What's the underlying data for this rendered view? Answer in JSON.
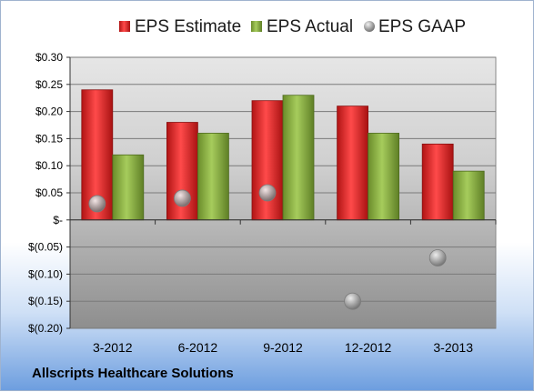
{
  "company": "Allscripts Healthcare Solutions",
  "colors": {
    "estimate": "#cc1f1f",
    "actual": "#7ea33a",
    "gaap": "#9a9a9a"
  },
  "chart_data": {
    "type": "bar",
    "categories": [
      "3-2012",
      "6-2012",
      "9-2012",
      "12-2012",
      "3-2013"
    ],
    "series": [
      {
        "name": "EPS Estimate",
        "kind": "bar",
        "values": [
          0.24,
          0.18,
          0.22,
          0.21,
          0.14
        ]
      },
      {
        "name": "EPS Actual",
        "kind": "bar",
        "values": [
          0.12,
          0.16,
          0.23,
          0.16,
          0.09
        ]
      },
      {
        "name": "EPS GAAP",
        "kind": "marker",
        "values": [
          0.03,
          0.04,
          0.05,
          -0.15,
          -0.07
        ]
      }
    ],
    "ylim": [
      -0.2,
      0.3
    ],
    "yticks": [
      0.3,
      0.25,
      0.2,
      0.15,
      0.1,
      0.05,
      0,
      -0.05,
      -0.1,
      -0.15,
      -0.2
    ],
    "ytick_labels": [
      "$0.30",
      "$0.25",
      "$0.20",
      "$0.15",
      "$0.10",
      "$0.05",
      "$-",
      "$(0.05)",
      "$(0.10)",
      "$(0.15)",
      "$(0.20)"
    ],
    "title": "",
    "xlabel": "",
    "ylabel": "",
    "legend_position": "top",
    "grid": true
  }
}
